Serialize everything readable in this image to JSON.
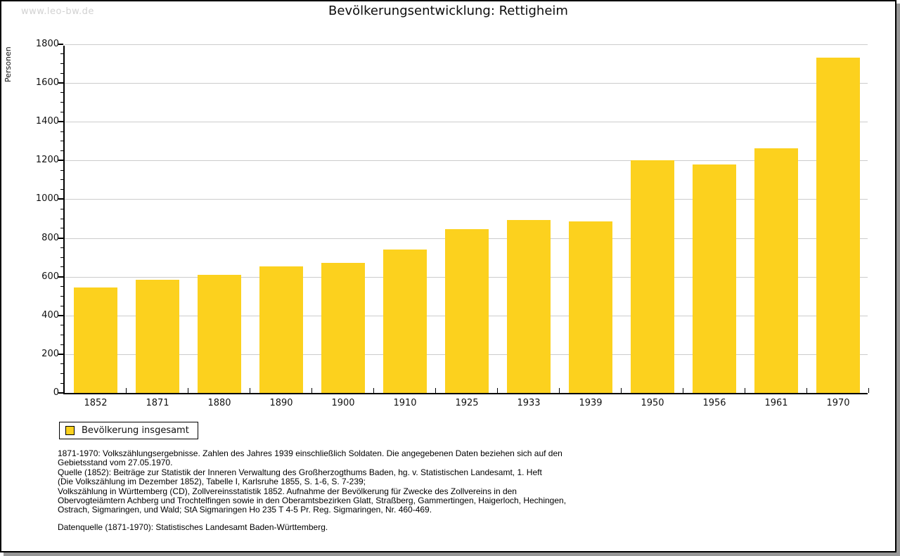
{
  "window": {
    "watermark": "www.leo-bw.de",
    "title": "Bevölkerungsentwicklung: Rettigheim"
  },
  "chart_data": {
    "type": "bar",
    "title": "Bevölkerungsentwicklung: Rettigheim",
    "xlabel": "",
    "ylabel": "Personen",
    "categories": [
      "1852",
      "1871",
      "1880",
      "1890",
      "1900",
      "1910",
      "1925",
      "1933",
      "1939",
      "1950",
      "1956",
      "1961",
      "1970"
    ],
    "series": [
      {
        "name": "Bevölkerung insgesamt",
        "values": [
          545,
          585,
          610,
          652,
          670,
          739,
          847,
          891,
          886,
          1200,
          1181,
          1264,
          1730
        ]
      }
    ],
    "ylim": [
      0,
      1800
    ],
    "ytick_step": 200,
    "ytick_minor_step": 50,
    "grid": true,
    "bar_color": "#FCD11E",
    "gridline_color": "#cccccc",
    "legend_position": "bottom-left"
  },
  "legend": {
    "label": "Bevölkerung insgesamt",
    "swatch_color": "#FCD11E"
  },
  "footnotes": {
    "lines": [
      "1871-1970: Volkszählungsergebnisse. Zahlen des Jahres 1939 einschließlich Soldaten. Die angegebenen Daten beziehen sich auf den",
      "Gebietsstand vom 27.05.1970.",
      "Quelle (1852): Beiträge zur Statistik der Inneren Verwaltung des Großherzogthums Baden, hg. v. Statistischen Landesamt, 1. Heft",
      "(Die Volkszählung im Dezember 1852), Tabelle I, Karlsruhe 1855, S. 1-6, S. 7-239;",
      "Volkszählung in Württemberg (CD), Zollvereinsstatistik 1852. Aufnahme der Bevölkerung für Zwecke des Zollvereins in den",
      "Obervogteiämtern Achberg und Trochtelfingen sowie in den Oberamtsbezirken Glatt, Straßberg, Gammertingen, Haigerloch, Hechingen,",
      "Ostrach, Sigmaringen, und Wald; StA Sigmaringen Ho 235 T 4-5 Pr. Reg. Sigmaringen, Nr. 460-469."
    ],
    "datasource": "Datenquelle (1871-1970): Statistisches Landesamt Baden-Württemberg."
  }
}
